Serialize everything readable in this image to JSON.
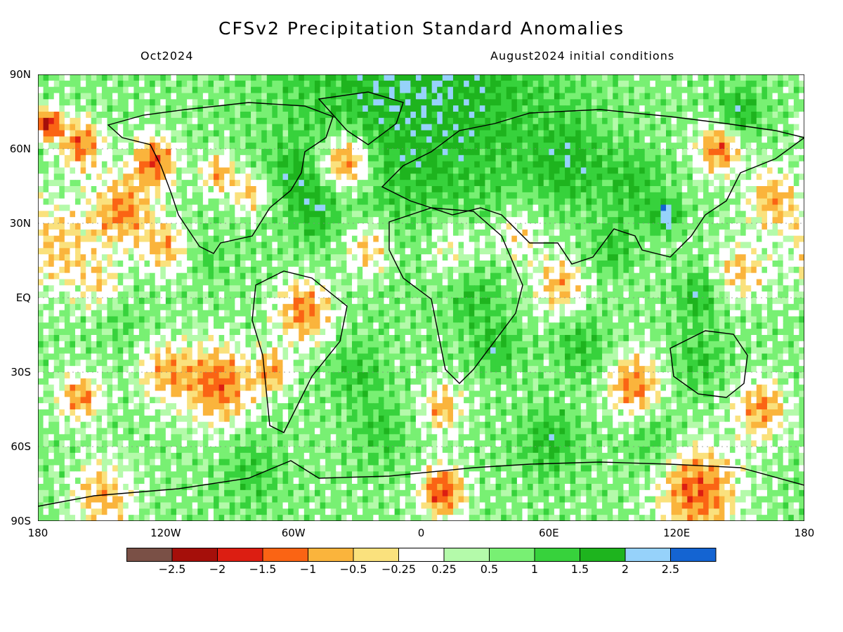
{
  "title": "CFSv2 Precipitation Standard Anomalies",
  "subtitle_left": "Oct2024",
  "subtitle_right": "August2024 initial conditions",
  "lat_ticks": [
    {
      "label": "90N",
      "lat": 90
    },
    {
      "label": "60N",
      "lat": 60
    },
    {
      "label": "30N",
      "lat": 30
    },
    {
      "label": "EQ",
      "lat": 0
    },
    {
      "label": "30S",
      "lat": -30
    },
    {
      "label": "60S",
      "lat": -60
    },
    {
      "label": "90S",
      "lat": -90
    }
  ],
  "lon_ticks": [
    {
      "label": "180",
      "lon": -180
    },
    {
      "label": "120W",
      "lon": -120
    },
    {
      "label": "60W",
      "lon": -60
    },
    {
      "label": "0",
      "lon": 0
    },
    {
      "label": "60E",
      "lon": 60
    },
    {
      "label": "120E",
      "lon": 120
    },
    {
      "label": "180",
      "lon": 180
    }
  ],
  "colorbar": {
    "colors": [
      "#7a5046",
      "#a50f0a",
      "#dc1e12",
      "#fa6414",
      "#fab43c",
      "#fae17d",
      "#ffffff",
      "#b4faaa",
      "#78f073",
      "#37d23c",
      "#1eb41e",
      "#96d2fa",
      "#1464d2"
    ],
    "labels": [
      "−2.5",
      "−2",
      "−1.5",
      "−1",
      "−0.5",
      "−0.25",
      "0.25",
      "0.5",
      "1",
      "1.5",
      "2",
      "2.5"
    ]
  },
  "regions": [
    {
      "lon": -170,
      "lat": 20,
      "r": 18,
      "v": -0.8
    },
    {
      "lon": -140,
      "lat": 35,
      "r": 14,
      "v": -1.3
    },
    {
      "lon": -120,
      "lat": 20,
      "r": 10,
      "v": -1.0
    },
    {
      "lon": -150,
      "lat": 5,
      "r": 10,
      "v": -0.5
    },
    {
      "lon": -100,
      "lat": 15,
      "r": 8,
      "v": 0.8
    },
    {
      "lon": -160,
      "lat": 62,
      "r": 10,
      "v": -1.4
    },
    {
      "lon": -175,
      "lat": 70,
      "r": 6,
      "v": -2.2
    },
    {
      "lon": -125,
      "lat": 55,
      "r": 10,
      "v": -1.6
    },
    {
      "lon": -95,
      "lat": 50,
      "r": 8,
      "v": -1.2
    },
    {
      "lon": -80,
      "lat": 42,
      "r": 8,
      "v": -1.0
    },
    {
      "lon": -60,
      "lat": 50,
      "r": 10,
      "v": 1.0
    },
    {
      "lon": -50,
      "lat": 35,
      "r": 10,
      "v": 1.2
    },
    {
      "lon": -35,
      "lat": 55,
      "r": 12,
      "v": -1.8
    },
    {
      "lon": -25,
      "lat": 20,
      "r": 12,
      "v": -1.0
    },
    {
      "lon": -55,
      "lat": -5,
      "r": 13,
      "v": -1.4
    },
    {
      "lon": -70,
      "lat": -30,
      "r": 8,
      "v": -1.2
    },
    {
      "lon": -95,
      "lat": -35,
      "r": 16,
      "v": -1.5
    },
    {
      "lon": -120,
      "lat": -30,
      "r": 12,
      "v": -1.0
    },
    {
      "lon": -160,
      "lat": -40,
      "r": 10,
      "v": -1.2
    },
    {
      "lon": -140,
      "lat": -10,
      "r": 10,
      "v": 0.7
    },
    {
      "lon": -30,
      "lat": -30,
      "r": 12,
      "v": 1.0
    },
    {
      "lon": -20,
      "lat": -55,
      "r": 14,
      "v": 0.9
    },
    {
      "lon": 10,
      "lat": -45,
      "r": 10,
      "v": -1.0
    },
    {
      "lon": 15,
      "lat": 20,
      "r": 15,
      "v": -0.6
    },
    {
      "lon": 45,
      "lat": 25,
      "r": 12,
      "v": -0.7
    },
    {
      "lon": 25,
      "lat": 0,
      "r": 12,
      "v": 1.0
    },
    {
      "lon": 35,
      "lat": -20,
      "r": 10,
      "v": 1.2
    },
    {
      "lon": 65,
      "lat": 5,
      "r": 12,
      "v": -1.0
    },
    {
      "lon": 75,
      "lat": -20,
      "r": 12,
      "v": 1.1
    },
    {
      "lon": 90,
      "lat": 20,
      "r": 10,
      "v": 1.0
    },
    {
      "lon": 100,
      "lat": 45,
      "r": 14,
      "v": 1.1
    },
    {
      "lon": 70,
      "lat": 55,
      "r": 16,
      "v": 1.2
    },
    {
      "lon": 140,
      "lat": 60,
      "r": 10,
      "v": -1.5
    },
    {
      "lon": 165,
      "lat": 40,
      "r": 12,
      "v": -1.0
    },
    {
      "lon": 150,
      "lat": 10,
      "r": 12,
      "v": -0.8
    },
    {
      "lon": 130,
      "lat": 0,
      "r": 10,
      "v": 1.3
    },
    {
      "lon": 130,
      "lat": -25,
      "r": 12,
      "v": 1.0
    },
    {
      "lon": 100,
      "lat": -35,
      "r": 12,
      "v": -1.4
    },
    {
      "lon": 160,
      "lat": -45,
      "r": 12,
      "v": -1.2
    },
    {
      "lon": 60,
      "lat": -58,
      "r": 14,
      "v": 1.2
    },
    {
      "lon": 110,
      "lat": -60,
      "r": 12,
      "v": 0.9
    },
    {
      "lon": 10,
      "lat": -78,
      "r": 10,
      "v": -1.8
    },
    {
      "lon": 130,
      "lat": -78,
      "r": 18,
      "v": -1.6
    },
    {
      "lon": -150,
      "lat": -80,
      "r": 14,
      "v": -1.0
    },
    {
      "lon": -80,
      "lat": -70,
      "r": 15,
      "v": 0.9
    },
    {
      "lon": 0,
      "lat": 87,
      "r": 60,
      "v": 1.6
    },
    {
      "lon": 150,
      "lat": 75,
      "r": 10,
      "v": 1.4
    },
    {
      "lon": 115,
      "lat": 33,
      "r": 6,
      "v": 2.0
    }
  ]
}
